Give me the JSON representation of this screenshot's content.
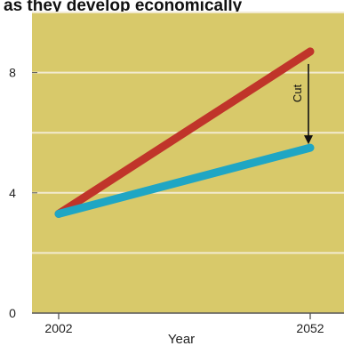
{
  "chart_data": {
    "type": "line",
    "title": "as they develop economically",
    "xlabel": "Year",
    "ylabel": "",
    "x": [
      2002,
      2052
    ],
    "xticks": [
      2002,
      2052
    ],
    "yticks": [
      0,
      4,
      8
    ],
    "ylim": [
      0,
      10
    ],
    "grid": true,
    "series": [
      {
        "values": [
          3.3,
          8.7
        ],
        "color": "#c0342a"
      },
      {
        "values": [
          3.3,
          5.5
        ],
        "color": "#1fa6c4"
      }
    ],
    "annotation": {
      "text": "Cut",
      "x": 2052,
      "from": 8.7,
      "to": 5.5
    },
    "colors": {
      "plot_bg": "#d8c96a",
      "grid": "#f2ead0"
    }
  }
}
